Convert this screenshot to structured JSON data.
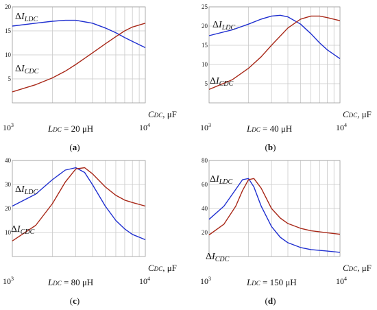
{
  "chart_data": [
    {
      "type": "line",
      "panel": "a",
      "caption": "(a)",
      "parameter": {
        "symbol": "L",
        "sub": "DC",
        "value": "= 20 μH"
      },
      "xlabel": {
        "symbol": "C",
        "sub": "DC",
        "unit": ", μF"
      },
      "xscale": "log",
      "xlim": [
        1000,
        10000
      ],
      "x_ticks": [
        {
          "base": "10",
          "exp": "3"
        },
        {
          "base": "10",
          "exp": "4"
        }
      ],
      "ylim": [
        0,
        20
      ],
      "y_ticks": [
        "5",
        "10",
        "15",
        "20"
      ],
      "grid": true,
      "series": [
        {
          "name_main": "ΔI",
          "name_sub": "LDC",
          "color": "#1f2fd0",
          "x": [
            1000,
            1500,
            2000,
            2500,
            3000,
            4000,
            5000,
            6000,
            7000,
            8000,
            10000
          ],
          "y": [
            16.0,
            16.6,
            17.0,
            17.2,
            17.2,
            16.6,
            15.6,
            14.6,
            13.6,
            12.8,
            11.5
          ]
        },
        {
          "name_main": "ΔI",
          "name_sub": "CDC",
          "color": "#a82818",
          "x": [
            1000,
            1500,
            2000,
            2500,
            3000,
            4000,
            5000,
            6000,
            7000,
            8000,
            10000
          ],
          "y": [
            2.3,
            3.8,
            5.2,
            6.6,
            8.0,
            10.4,
            12.3,
            13.8,
            15.0,
            15.8,
            16.6
          ]
        }
      ]
    },
    {
      "type": "line",
      "panel": "b",
      "caption": "(b)",
      "parameter": {
        "symbol": "L",
        "sub": "DC",
        "value": "= 40 μH"
      },
      "xlabel": {
        "symbol": "C",
        "sub": "DC",
        "unit": ", μF"
      },
      "xscale": "log",
      "xlim": [
        1000,
        10000
      ],
      "x_ticks": [
        {
          "base": "10",
          "exp": "3"
        },
        {
          "base": "10",
          "exp": "4"
        }
      ],
      "ylim": [
        0,
        25
      ],
      "y_ticks": [
        "5",
        "10",
        "15",
        "20",
        "25"
      ],
      "grid": true,
      "series": [
        {
          "name_main": "ΔI",
          "name_sub": "LDC",
          "color": "#1f2fd0",
          "x": [
            1000,
            1500,
            2000,
            2500,
            3000,
            3500,
            4000,
            5000,
            6000,
            7000,
            8000,
            10000
          ],
          "y": [
            17.5,
            19.0,
            20.5,
            21.8,
            22.6,
            22.8,
            22.4,
            20.5,
            18.0,
            15.6,
            13.8,
            11.5
          ]
        },
        {
          "name_main": "ΔI",
          "name_sub": "CDC",
          "color": "#a82818",
          "x": [
            1000,
            1500,
            2000,
            2500,
            3000,
            4000,
            5000,
            6000,
            7000,
            8000,
            10000
          ],
          "y": [
            3.5,
            6.0,
            9.0,
            12.0,
            15.0,
            19.5,
            21.8,
            22.6,
            22.6,
            22.2,
            21.4
          ]
        }
      ]
    },
    {
      "type": "line",
      "panel": "c",
      "caption": "(c)",
      "parameter": {
        "symbol": "L",
        "sub": "DC",
        "value": "= 80 μH"
      },
      "xlabel": {
        "symbol": "C",
        "sub": "DC",
        "unit": ", μF"
      },
      "xscale": "log",
      "xlim": [
        1000,
        10000
      ],
      "x_ticks": [
        {
          "base": "10",
          "exp": "3"
        },
        {
          "base": "10",
          "exp": "4"
        }
      ],
      "ylim": [
        0,
        40
      ],
      "y_ticks": [
        "10",
        "20",
        "30",
        "40"
      ],
      "grid": true,
      "series": [
        {
          "name_main": "ΔI",
          "name_sub": "LDC",
          "color": "#1f2fd0",
          "x": [
            1000,
            1500,
            2000,
            2500,
            3000,
            3500,
            4000,
            5000,
            6000,
            7000,
            8000,
            10000
          ],
          "y": [
            21.0,
            26.0,
            32.0,
            36.0,
            37.0,
            35.0,
            30.0,
            21.0,
            15.0,
            11.5,
            9.2,
            7.0
          ]
        },
        {
          "name_main": "ΔI",
          "name_sub": "CDC",
          "color": "#a82818",
          "x": [
            1000,
            1500,
            2000,
            2500,
            3000,
            3500,
            4000,
            5000,
            6000,
            7000,
            8000,
            10000
          ],
          "y": [
            6.5,
            13.0,
            22.0,
            31.0,
            36.5,
            37.0,
            34.5,
            29.0,
            25.5,
            23.5,
            22.5,
            21.0
          ]
        }
      ]
    },
    {
      "type": "line",
      "panel": "d",
      "caption": "(d)",
      "parameter": {
        "symbol": "L",
        "sub": "DC",
        "value": "= 150 μH"
      },
      "xlabel": {
        "symbol": "C",
        "sub": "DC",
        "unit": ", μF"
      },
      "xscale": "log",
      "xlim": [
        1000,
        10000
      ],
      "x_ticks": [
        {
          "base": "10",
          "exp": "3"
        },
        {
          "base": "10",
          "exp": "4"
        }
      ],
      "ylim": [
        0,
        80
      ],
      "y_ticks": [
        "20",
        "40",
        "60",
        "80"
      ],
      "grid": true,
      "series": [
        {
          "name_main": "ΔI",
          "name_sub": "LDC",
          "color": "#1f2fd0",
          "x": [
            1000,
            1300,
            1600,
            1800,
            2000,
            2200,
            2500,
            3000,
            3500,
            4000,
            5000,
            6000,
            8000,
            10000
          ],
          "y": [
            31.0,
            42.0,
            56.0,
            64.0,
            65.0,
            58.0,
            42.0,
            25.0,
            16.0,
            11.5,
            7.5,
            5.8,
            4.5,
            3.5
          ]
        },
        {
          "name_main": "ΔI",
          "name_sub": "CDC",
          "color": "#a82818",
          "x": [
            1000,
            1300,
            1600,
            1800,
            2000,
            2200,
            2500,
            3000,
            3500,
            4000,
            5000,
            6000,
            8000,
            10000
          ],
          "y": [
            18.0,
            27.0,
            42.0,
            55.0,
            64.0,
            65.0,
            57.0,
            40.0,
            32.0,
            27.5,
            23.5,
            21.5,
            19.8,
            18.5
          ]
        }
      ]
    }
  ]
}
